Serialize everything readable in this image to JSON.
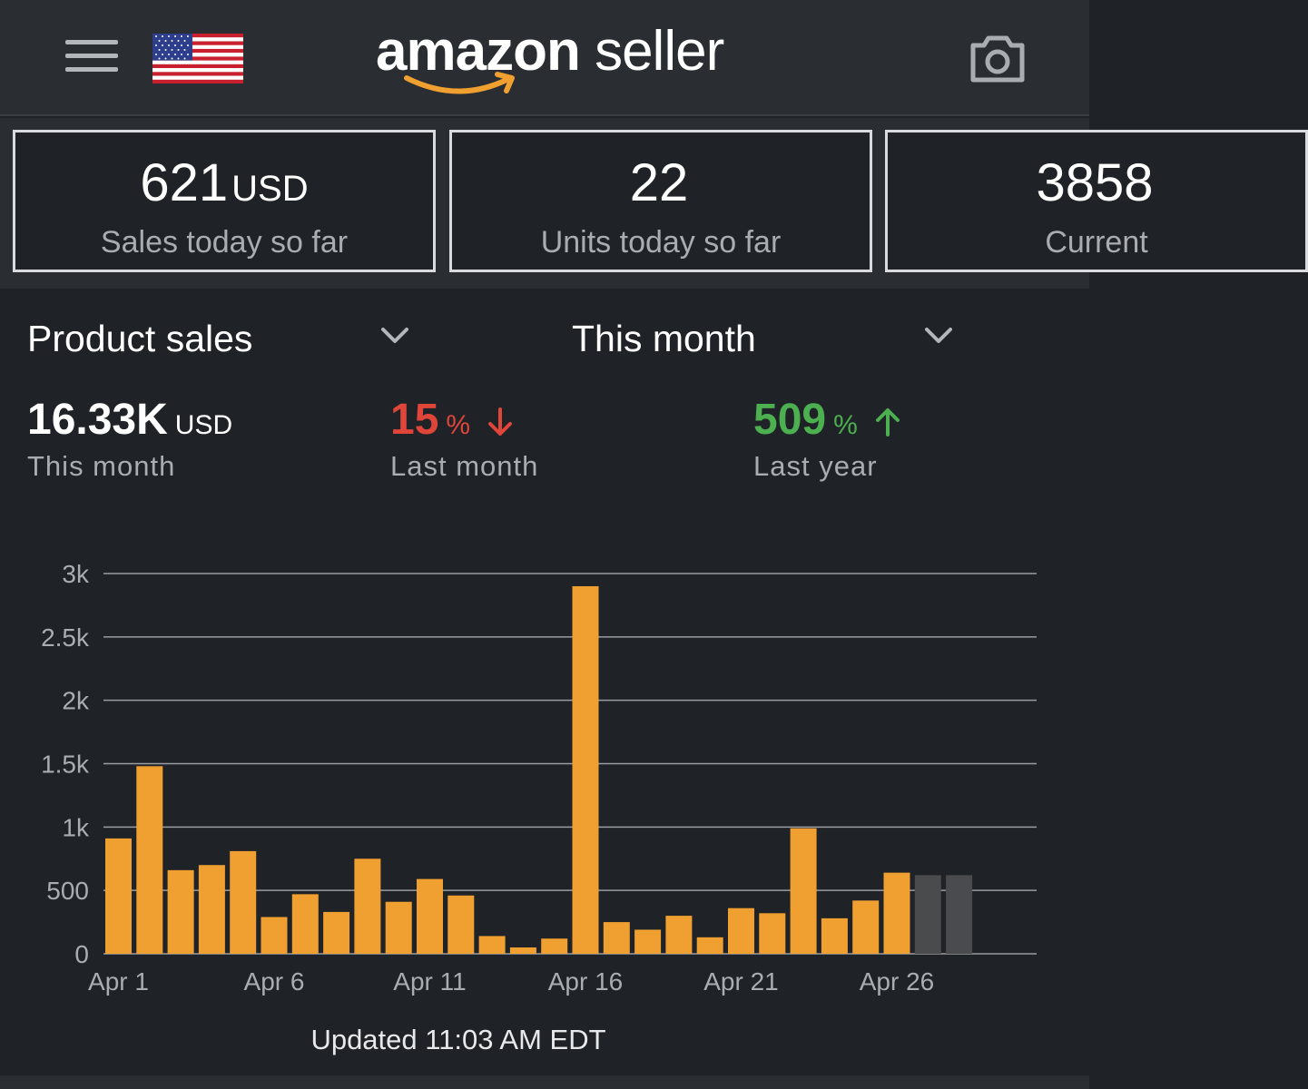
{
  "header": {
    "menu_icon": "hamburger-menu-icon",
    "flag_icon": "us-flag-icon",
    "logo_part1": "amazon",
    "logo_part2": "seller",
    "camera_icon": "camera-icon"
  },
  "kpis": [
    {
      "value": "621",
      "unit": "USD",
      "label": "Sales today so far"
    },
    {
      "value": "22",
      "unit": "",
      "label": "Units today so far"
    },
    {
      "value": "3858",
      "unit": "",
      "label": "Current"
    }
  ],
  "selectors": {
    "metric": "Product sales",
    "period": "This month"
  },
  "stats": {
    "total": {
      "value": "16.33K",
      "unit": "USD",
      "label": "This month"
    },
    "last_month": {
      "value": "15",
      "unit": "%",
      "label": "Last month",
      "direction": "down",
      "color": "#e0453a"
    },
    "last_year": {
      "value": "509",
      "unit": "%",
      "label": "Last year",
      "direction": "up",
      "color": "#4caf50"
    }
  },
  "chart_data": {
    "type": "bar",
    "categories": [
      "Apr 1",
      "Apr 2",
      "Apr 3",
      "Apr 4",
      "Apr 5",
      "Apr 6",
      "Apr 7",
      "Apr 8",
      "Apr 9",
      "Apr 10",
      "Apr 11",
      "Apr 12",
      "Apr 13",
      "Apr 14",
      "Apr 15",
      "Apr 16",
      "Apr 17",
      "Apr 18",
      "Apr 19",
      "Apr 20",
      "Apr 21",
      "Apr 22",
      "Apr 23",
      "Apr 24",
      "Apr 25",
      "Apr 26",
      "Apr 27",
      "Apr 28"
    ],
    "values": [
      910,
      1480,
      660,
      700,
      810,
      290,
      470,
      330,
      750,
      410,
      590,
      460,
      140,
      50,
      120,
      2900,
      250,
      190,
      300,
      130,
      360,
      320,
      990,
      280,
      420,
      640,
      620,
      620
    ],
    "projected_from_index": 26,
    "x_tick_labels": [
      "Apr 1",
      "Apr 6",
      "Apr 11",
      "Apr 16",
      "Apr 21",
      "Apr 26"
    ],
    "y_tick_labels": [
      "0",
      "500",
      "1k",
      "1.5k",
      "2k",
      "2.5k",
      "3k"
    ],
    "ylim": [
      0,
      3000
    ],
    "grid": true,
    "colors": {
      "bar": "#f0a030",
      "projected": "#4a4b4d",
      "grid": "#9a9da1",
      "tick": "#a9adb2"
    }
  },
  "footer": {
    "updated_text": "Updated 11:03 AM EDT"
  },
  "theme": {
    "background": "#1f2226",
    "header_bg": "#2a2d31",
    "accent_orange": "#f0a030"
  }
}
